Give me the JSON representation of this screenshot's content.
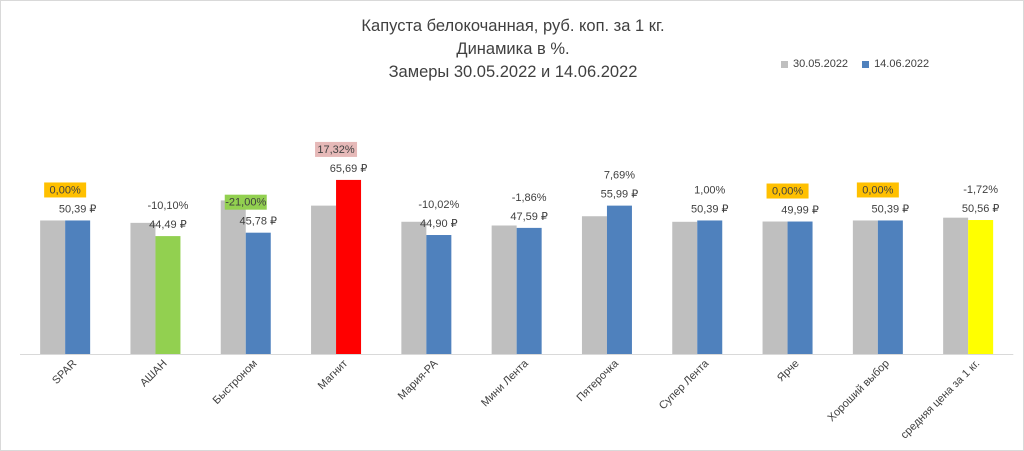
{
  "chart_data": {
    "type": "bar",
    "title_lines": [
      "Капуста белокочанная, руб. коп. за 1 кг.",
      "Динамика в %.",
      "Замеры 30.05.2022 и 14.06.2022"
    ],
    "legend_position": "top-right",
    "categories": [
      "SPAR",
      "АШАН",
      "Быстроном",
      "Магнит",
      "Мария-РА",
      "Мини Лента",
      "Пятерочка",
      "Супер Лента",
      "Ярче",
      "Хороший выбор",
      "средняя цена за 1 кг."
    ],
    "series": [
      {
        "name": "30.05.2022",
        "color": "#bfbfbf",
        "values": [
          50.39,
          49.49,
          57.95,
          55.99,
          49.9,
          48.49,
          51.99,
          49.89,
          49.99,
          50.39,
          51.44
        ]
      },
      {
        "name": "14.06.2022",
        "color": "#4f81bd",
        "values": [
          50.39,
          44.49,
          45.78,
          65.69,
          44.9,
          47.59,
          55.99,
          50.39,
          49.99,
          50.39,
          50.56
        ],
        "point_colors": [
          "#4f81bd",
          "#92d050",
          "#4f81bd",
          "#ff0000",
          "#4f81bd",
          "#4f81bd",
          "#4f81bd",
          "#4f81bd",
          "#4f81bd",
          "#4f81bd",
          "#ffff00"
        ]
      }
    ],
    "value_labels": [
      "50,39 ₽",
      "44,49 ₽",
      "45,78 ₽",
      "65,69 ₽",
      "44,90 ₽",
      "47,59 ₽",
      "55,99 ₽",
      "50,39 ₽",
      "49,99 ₽",
      "50,39 ₽",
      "50,56 ₽"
    ],
    "change_labels": [
      "0,00%",
      "-10,10%",
      "-21,00%",
      "17,32%",
      "-10,02%",
      "-1,86%",
      "7,69%",
      "1,00%",
      "0,00%",
      "0,00%",
      "-1,72%"
    ],
    "change_highlight": [
      "#ffc000",
      null,
      "#92d050",
      "#e6b9b8",
      null,
      null,
      null,
      null,
      "#ffc000",
      "#ffc000",
      null
    ],
    "ylim": [
      0,
      70
    ],
    "grid": false
  }
}
